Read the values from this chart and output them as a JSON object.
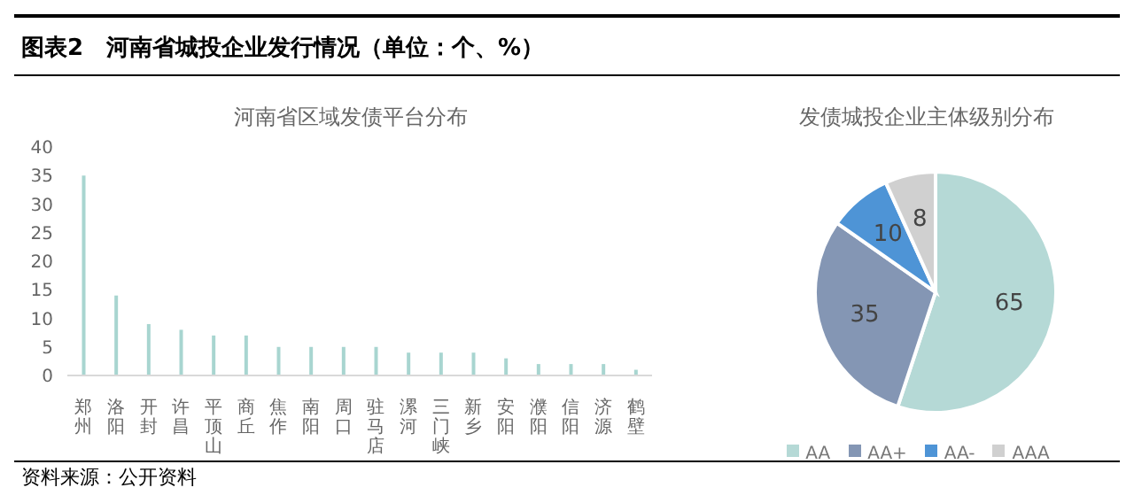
{
  "chart_data": [
    {
      "type": "bar",
      "title": "河南省区域发债平台分布",
      "annotations": [
        "图表2　河南省城投企业发行情况（单位：个、%）",
        "资料来源：公开资料"
      ],
      "categories": [
        "郑州",
        "洛阳",
        "开封",
        "许昌",
        "平顶山",
        "商丘",
        "焦作",
        "南阳",
        "周口",
        "驻马店",
        "漯河",
        "三门峡",
        "新乡",
        "安阳",
        "濮阳",
        "信阳",
        "济源",
        "鹤壁"
      ],
      "values": [
        35,
        14,
        9,
        8,
        7,
        7,
        5,
        5,
        5,
        5,
        4,
        4,
        4,
        3,
        2,
        2,
        2,
        1
      ],
      "color": "#a8d5d0",
      "ylim": [
        0,
        40
      ],
      "yticks": [
        0,
        5,
        10,
        15,
        20,
        25,
        30,
        35,
        40
      ],
      "grid": false,
      "legend": false
    },
    {
      "type": "pie",
      "title": "发债城投企业主体级别分布",
      "categories": [
        "AA",
        "AA+",
        "AA-",
        "AAA"
      ],
      "values": [
        65,
        35,
        10,
        8
      ],
      "colors": [
        "#b5d9d6",
        "#8496b4",
        "#4e94d6",
        "#d0d0d0"
      ],
      "data_labels": true,
      "legend": "bottom"
    }
  ]
}
